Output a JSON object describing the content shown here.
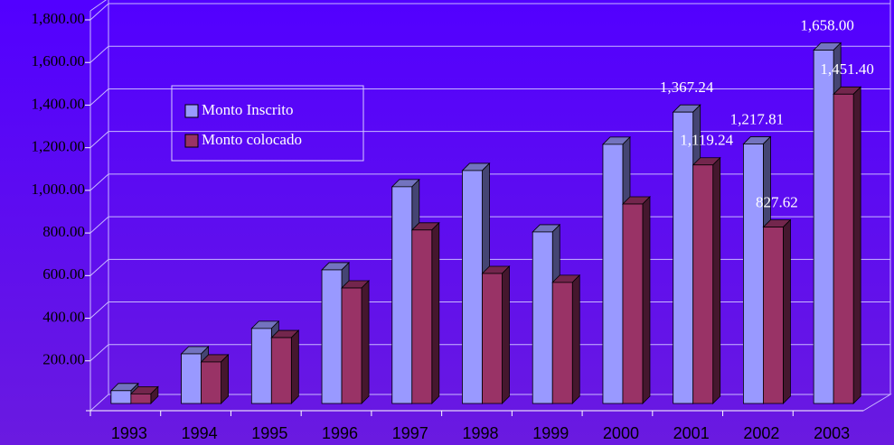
{
  "chart_data": {
    "type": "bar3d",
    "categories": [
      "1993",
      "1994",
      "1995",
      "1996",
      "1997",
      "1998",
      "1999",
      "2000",
      "2001",
      "2002",
      "2003"
    ],
    "series": [
      {
        "name": "Monto Inscrito",
        "color": "#9999ff",
        "values": [
          60,
          233,
          352,
          627,
          1017,
          1093,
          805,
          1216,
          1367.24,
          1217.81,
          1658.0
        ],
        "value_labels": [
          null,
          null,
          null,
          null,
          null,
          null,
          null,
          null,
          "1,367.24",
          "1,217.81",
          "1,658.00"
        ]
      },
      {
        "name": "Monto colocado",
        "color": "#993366",
        "values": [
          45,
          195,
          309,
          542,
          814,
          610,
          568,
          936,
          1119.24,
          827.62,
          1451.4
        ],
        "value_labels": [
          null,
          null,
          null,
          null,
          null,
          null,
          null,
          null,
          "1,119.24",
          "827.62",
          "1,451.40"
        ]
      }
    ],
    "ylim": [
      0,
      1800
    ],
    "yticks": [
      {
        "value": 200,
        "label": "200.00"
      },
      {
        "value": 400,
        "label": "400.00"
      },
      {
        "value": 600,
        "label": "600.00"
      },
      {
        "value": 800,
        "label": "800.00"
      },
      {
        "value": 1000,
        "label": "1,000.00"
      },
      {
        "value": 1200,
        "label": "1,200.00"
      },
      {
        "value": 1400,
        "label": "1,400.00"
      },
      {
        "value": 1600,
        "label": "1,600.00"
      },
      {
        "value": 1800,
        "label": "1,800.00"
      }
    ],
    "grid": true,
    "legend": "upper left"
  }
}
